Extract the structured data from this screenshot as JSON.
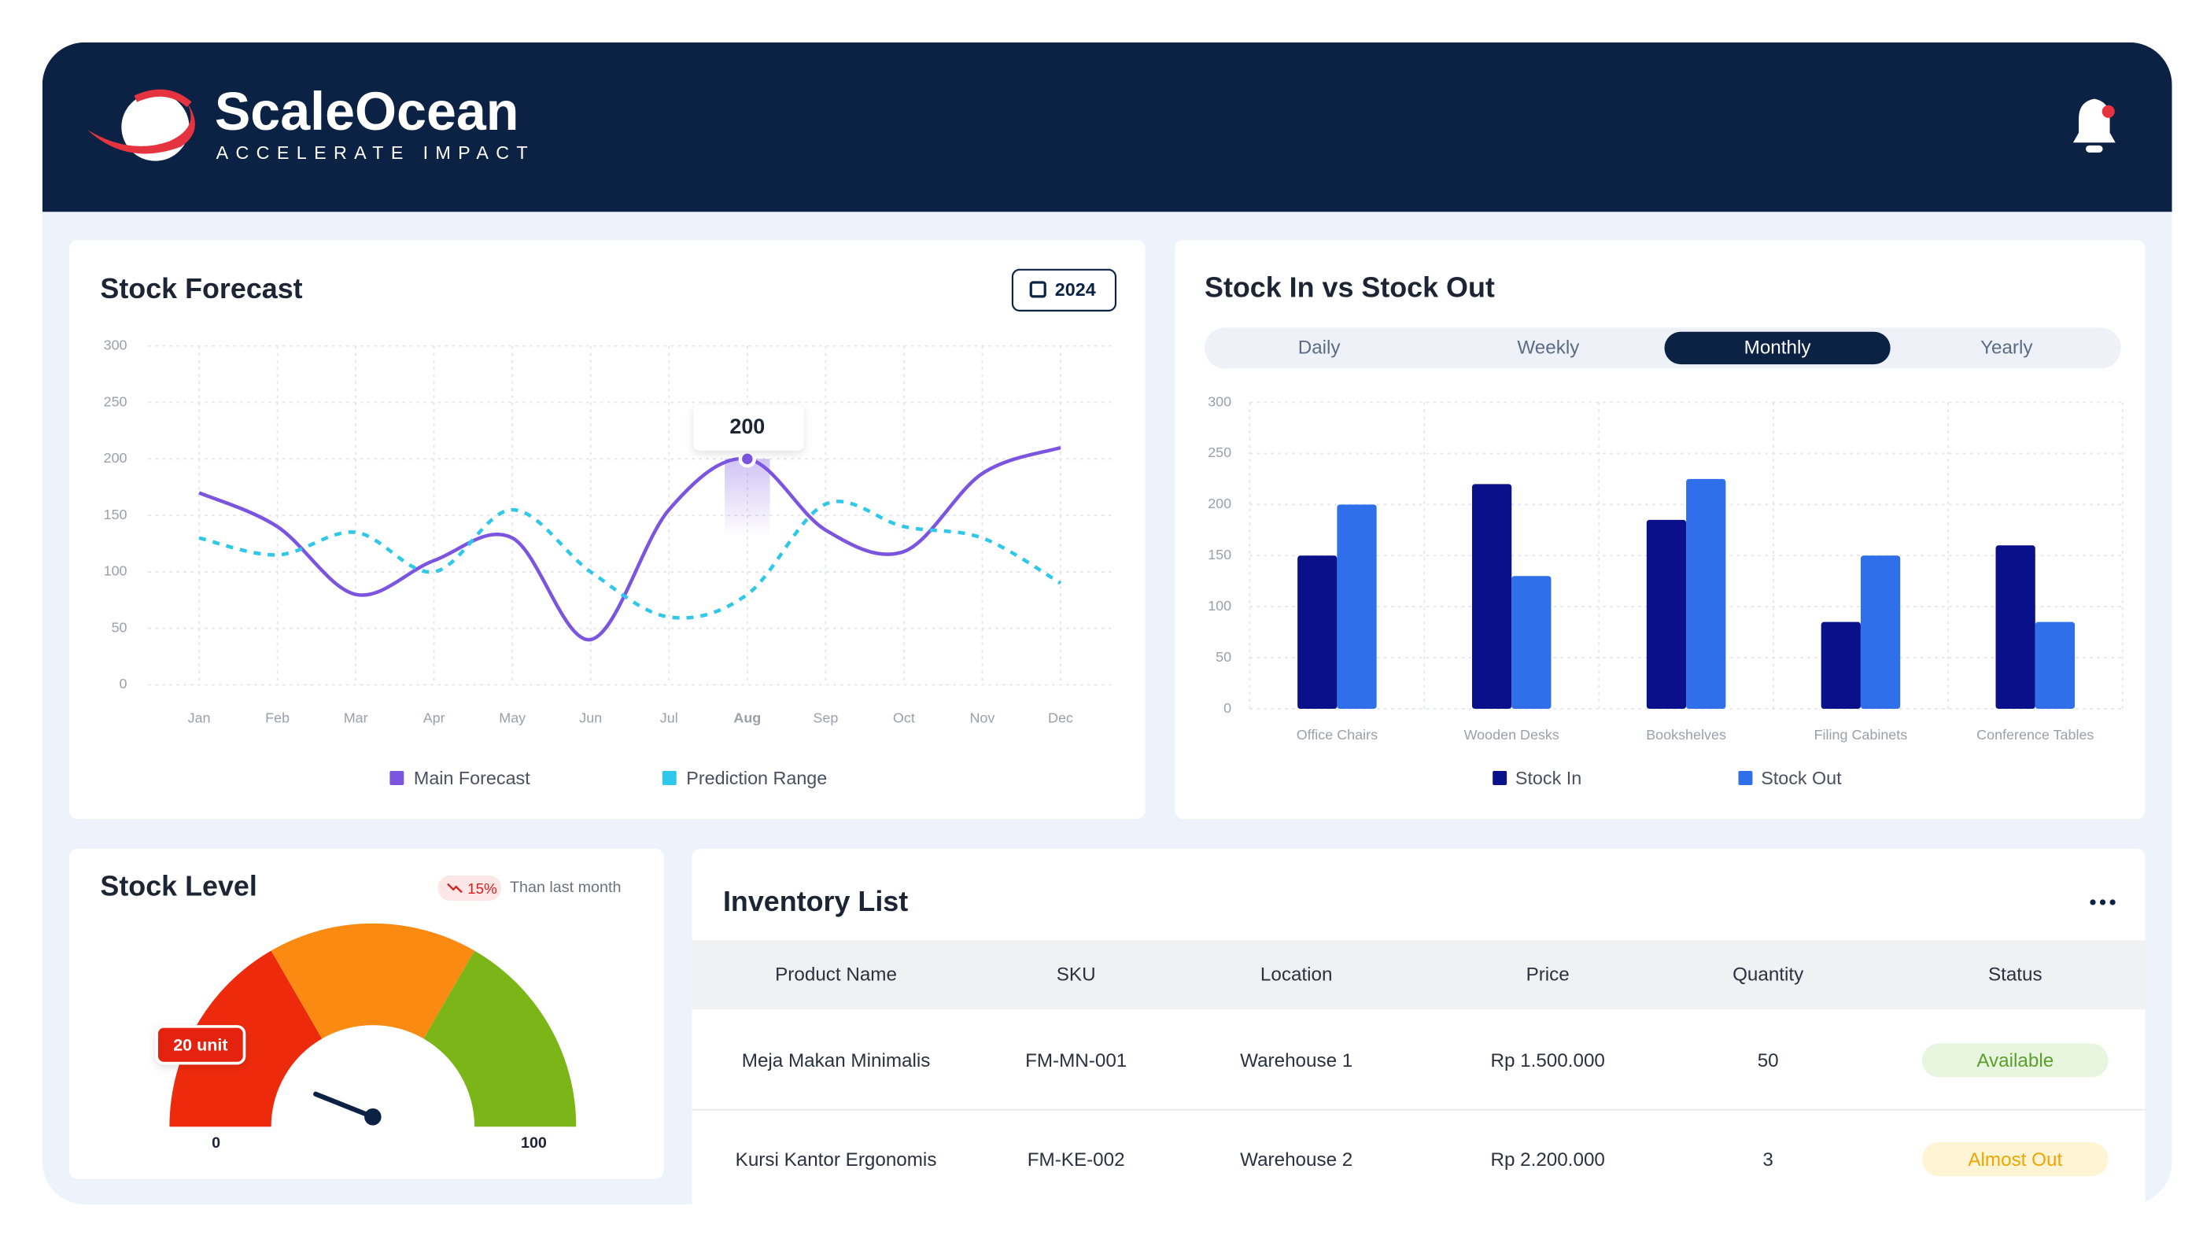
{
  "header": {
    "brand": "ScaleOcean",
    "tagline": "ACCELERATE IMPACT"
  },
  "chart_data": [
    {
      "type": "line",
      "title": "Stock Forecast",
      "year_button": "2024",
      "categories": [
        "Jan",
        "Feb",
        "Mar",
        "Apr",
        "May",
        "Jun",
        "Jul",
        "Aug",
        "Sep",
        "Oct",
        "Nov",
        "Dec"
      ],
      "series": [
        {
          "name": "Main Forecast",
          "color": "#7b55e0",
          "values": [
            170,
            140,
            80,
            110,
            130,
            40,
            155,
            200,
            137,
            118,
            187,
            210
          ],
          "value_labels": [
            null,
            null,
            null,
            null,
            null,
            null,
            null,
            "200",
            null,
            null,
            null,
            null
          ]
        },
        {
          "name": "Prediction Range",
          "color": "#2fc7ea",
          "dashed": true,
          "values": [
            130,
            115,
            135,
            100,
            155,
            100,
            60,
            80,
            160,
            140,
            130,
            90
          ]
        }
      ],
      "ylim": [
        0,
        300
      ],
      "yticks": [
        0,
        50,
        100,
        150,
        200,
        250,
        300
      ],
      "grid": true,
      "legend": "bottom"
    },
    {
      "type": "bar",
      "title": "Stock In vs Stock Out",
      "tabs": [
        "Daily",
        "Weekly",
        "Monthly",
        "Yearly"
      ],
      "active_tab": 2,
      "categories": [
        "Office Chairs",
        "Wooden Desks",
        "Bookshelves",
        "Filing Cabinets",
        "Conference Tables"
      ],
      "series": [
        {
          "name": "Stock In",
          "color": "#0a0f8a",
          "values": [
            150,
            220,
            185,
            85,
            160
          ]
        },
        {
          "name": "Stock Out",
          "color": "#2f6fea",
          "values": [
            200,
            130,
            225,
            150,
            85
          ]
        }
      ],
      "ylim": [
        0,
        300
      ],
      "yticks": [
        0,
        50,
        100,
        150,
        200,
        250,
        300
      ],
      "grid": true,
      "legend": "bottom"
    },
    {
      "type": "gauge",
      "title": "Stock Level",
      "change_label": "15%",
      "change_note": "Than last month",
      "min": 0,
      "max": 100,
      "value": 20,
      "value_label": "20 unit",
      "colors": [
        "#ee2a0d",
        "#fb8a13",
        "#7cb518"
      ]
    }
  ],
  "inventory": {
    "title": "Inventory List",
    "columns": [
      "Product Name",
      "SKU",
      "Location",
      "Price",
      "Quantity",
      "Status"
    ],
    "rows": [
      [
        "Meja Makan Minimalis",
        "FM-MN-001",
        "Warehouse 1",
        "Rp 1.500.000",
        "50",
        "Available"
      ],
      [
        "Kursi Kantor Ergonomis",
        "FM-KE-002",
        "Warehouse 2",
        "Rp 2.200.000",
        "3",
        "Almost Out"
      ]
    ]
  }
}
